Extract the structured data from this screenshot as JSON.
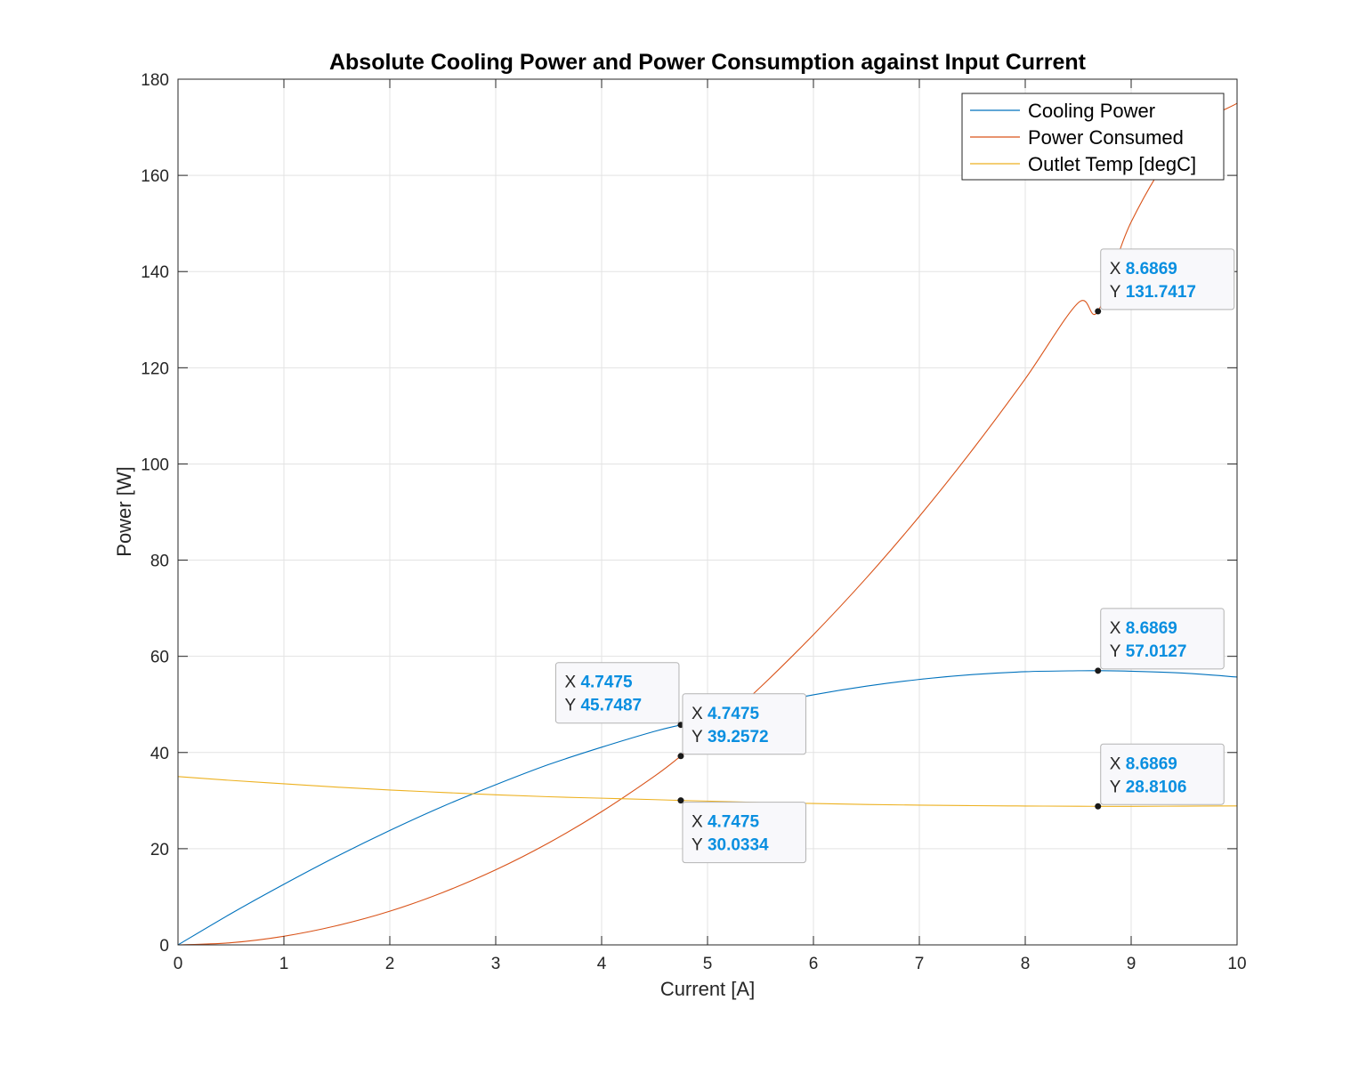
{
  "chart_data": {
    "type": "line",
    "title": "Absolute Cooling Power and Power Consumption against Input Current",
    "xlabel": "Current [A]",
    "ylabel": "Power [W]",
    "xlim": [
      0,
      10
    ],
    "ylim": [
      0,
      180
    ],
    "xticks": [
      "0",
      "1",
      "2",
      "3",
      "4",
      "5",
      "6",
      "7",
      "8",
      "9",
      "10"
    ],
    "yticks": [
      "0",
      "20",
      "40",
      "60",
      "80",
      "100",
      "120",
      "140",
      "160",
      "180"
    ],
    "grid": true,
    "legend_position": "top-right",
    "x": [
      0,
      0.5,
      1,
      1.5,
      2,
      2.5,
      3,
      3.5,
      4,
      4.5,
      4.7475,
      5,
      5.5,
      6,
      6.5,
      7,
      7.5,
      8,
      8.5,
      8.6869,
      9,
      9.5,
      10
    ],
    "series": [
      {
        "name": "Cooling Power",
        "color": "#0072bd",
        "values": [
          0,
          6.5,
          12.6,
          18.4,
          23.8,
          28.8,
          33.3,
          37.5,
          41.1,
          44.4,
          45.7487,
          47.1,
          49.8,
          52.0,
          53.8,
          55.2,
          56.2,
          56.8,
          57.0,
          57.0127,
          56.9,
          56.5,
          55.7
        ]
      },
      {
        "name": "Power Consumed",
        "color": "#d95319",
        "values": [
          0,
          0.45,
          1.8,
          4.0,
          7.0,
          10.9,
          15.6,
          21.2,
          27.7,
          35.1,
          39.2572,
          43.6,
          53.6,
          64.5,
          76.3,
          89.1,
          102.9,
          117.7,
          133.5,
          131.7417,
          150.3,
          168.0,
          175.0
        ]
      },
      {
        "name": "Outlet Temp [degC]",
        "color": "#edb120",
        "values": [
          35.0,
          34.2,
          33.5,
          32.8,
          32.2,
          31.7,
          31.2,
          30.8,
          30.5,
          30.2,
          30.0334,
          29.9,
          29.6,
          29.4,
          29.2,
          29.05,
          28.95,
          28.88,
          28.82,
          28.8106,
          28.81,
          28.85,
          28.9
        ]
      }
    ],
    "datatips": [
      {
        "x": "4.7475",
        "y": "45.7487",
        "x_value": 4.7475,
        "y_value": 45.7487,
        "side": "upper-left"
      },
      {
        "x": "4.7475",
        "y": "39.2572",
        "x_value": 4.7475,
        "y_value": 39.2572,
        "side": "upper-right"
      },
      {
        "x": "4.7475",
        "y": "30.0334",
        "x_value": 4.7475,
        "y_value": 30.0334,
        "side": "lower-right"
      },
      {
        "x": "8.6869",
        "y": "131.7417",
        "x_value": 8.6869,
        "y_value": 131.7417,
        "side": "upper-right"
      },
      {
        "x": "8.6869",
        "y": "57.0127",
        "x_value": 8.6869,
        "y_value": 57.0127,
        "side": "upper-right"
      },
      {
        "x": "8.6869",
        "y": "28.8106",
        "x_value": 8.6869,
        "y_value": 28.8106,
        "side": "upper-right"
      }
    ],
    "datatip_x_prefix": "X",
    "datatip_y_prefix": "Y"
  }
}
